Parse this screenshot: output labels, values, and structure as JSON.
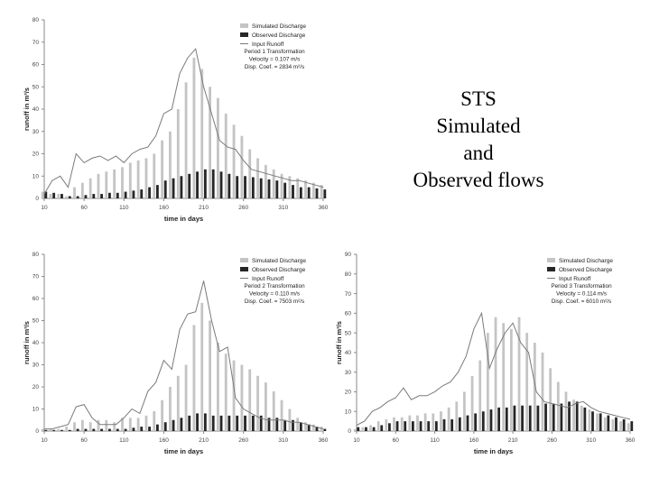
{
  "title": {
    "lines": [
      "STS",
      "Simulated",
      "and",
      "Observed flows"
    ]
  },
  "colors": {
    "simulated": "#c4c4c4",
    "observed": "#262626",
    "runoff": "#7a7a7a",
    "axis": "#8a8a8a"
  },
  "chart_data": [
    {
      "type": "bar",
      "xlabel": "time in days",
      "ylabel": "runoff in m³/s",
      "xlim": [
        10,
        360
      ],
      "xticks": [
        10,
        60,
        110,
        160,
        210,
        260,
        310,
        360
      ],
      "ylim": [
        0,
        80
      ],
      "yticks": [
        0,
        10,
        20,
        30,
        40,
        50,
        60,
        70,
        80
      ],
      "grid": false,
      "legend_position": "top-right",
      "legend": [
        "Simulated Discharge",
        "Observed Discharge",
        "Input Runoff"
      ],
      "annotation": [
        "Period 1 Transformation",
        "Velocity = 0.107 m/s",
        "Disp. Coef. = 2834 m²/s"
      ],
      "x": [
        10,
        20,
        30,
        40,
        50,
        60,
        70,
        80,
        90,
        100,
        110,
        120,
        130,
        140,
        150,
        160,
        170,
        180,
        190,
        200,
        210,
        220,
        230,
        240,
        250,
        260,
        270,
        280,
        290,
        300,
        310,
        320,
        330,
        340,
        350,
        360
      ],
      "series": [
        {
          "name": "Simulated Discharge",
          "kind": "bar",
          "values": [
            3,
            2,
            2,
            1,
            5,
            7,
            9,
            11,
            12,
            13,
            14,
            16,
            17,
            18,
            20,
            26,
            30,
            40,
            52,
            63,
            58,
            50,
            45,
            38,
            33,
            28,
            22,
            18,
            15,
            13,
            11,
            10,
            9,
            8,
            7,
            6
          ]
        },
        {
          "name": "Observed Discharge",
          "kind": "bar",
          "values": [
            3,
            2.5,
            2,
            1,
            1,
            1.5,
            2,
            2,
            2.5,
            2.5,
            3,
            3.5,
            4,
            5,
            6,
            8,
            9,
            10,
            11,
            12,
            13,
            13,
            12,
            11,
            10,
            10,
            9.5,
            9,
            8.5,
            8,
            7,
            6,
            5,
            5,
            4.5,
            4
          ]
        },
        {
          "name": "Input Runoff",
          "kind": "line",
          "values": [
            2,
            8,
            10,
            5,
            20,
            16,
            18,
            19,
            17,
            19,
            16,
            20,
            22,
            23,
            28,
            38,
            40,
            56,
            63,
            67,
            50,
            38,
            26,
            23,
            22,
            17,
            13,
            12,
            11,
            10,
            9,
            8,
            8,
            7,
            6,
            5
          ]
        }
      ]
    },
    {
      "type": "bar",
      "xlabel": "time in days",
      "ylabel": "runoff in m³/s",
      "xlim": [
        10,
        360
      ],
      "xticks": [
        10,
        60,
        110,
        160,
        210,
        260,
        310,
        360
      ],
      "ylim": [
        0,
        80
      ],
      "yticks": [
        0,
        10,
        20,
        30,
        40,
        50,
        60,
        70,
        80
      ],
      "grid": false,
      "legend_position": "top-right",
      "legend": [
        "Simulated Discharge",
        "Observed Discharge",
        "Input Runoff"
      ],
      "annotation": [
        "Period 2 Transformation",
        "Velocity = 0.110 m/s",
        "Disp. Coef. = 7503 m²/s"
      ],
      "x": [
        10,
        20,
        30,
        40,
        50,
        60,
        70,
        80,
        90,
        100,
        110,
        120,
        130,
        140,
        150,
        160,
        170,
        180,
        190,
        200,
        210,
        220,
        230,
        240,
        250,
        260,
        270,
        280,
        290,
        300,
        310,
        320,
        330,
        340,
        350,
        360
      ],
      "series": [
        {
          "name": "Simulated Discharge",
          "kind": "bar",
          "values": [
            1,
            1,
            1,
            2,
            4,
            5,
            4,
            5,
            5,
            4,
            6,
            6,
            6,
            7,
            9,
            14,
            20,
            25,
            30,
            48,
            58,
            50,
            40,
            35,
            32,
            30,
            28,
            25,
            22,
            18,
            14,
            10,
            6,
            4,
            3,
            2
          ]
        },
        {
          "name": "Observed Discharge",
          "kind": "bar",
          "values": [
            0.5,
            0.5,
            0.5,
            0.5,
            1,
            1,
            1,
            1,
            1,
            1,
            1,
            1.5,
            2,
            2,
            3,
            4,
            5,
            6,
            7,
            8,
            8,
            7,
            7,
            7,
            7,
            7,
            7,
            7,
            6,
            6,
            5,
            5,
            4,
            3,
            2,
            1
          ]
        },
        {
          "name": "Input Runoff",
          "kind": "line",
          "values": [
            1,
            1,
            2,
            3,
            11,
            12,
            6,
            3,
            3,
            3,
            6,
            10,
            8,
            18,
            22,
            32,
            28,
            46,
            53,
            54,
            68,
            50,
            36,
            38,
            15,
            10,
            8,
            6,
            5,
            5,
            5,
            4,
            4,
            3,
            2,
            1
          ]
        }
      ]
    },
    {
      "type": "bar",
      "xlabel": "time in days",
      "ylabel": "runoff in m³/s",
      "xlim": [
        10,
        360
      ],
      "xticks": [
        10,
        60,
        110,
        160,
        210,
        260,
        310,
        360
      ],
      "ylim": [
        0,
        90
      ],
      "yticks": [
        0,
        10,
        20,
        30,
        40,
        50,
        60,
        70,
        80,
        90
      ],
      "grid": false,
      "legend_position": "top-right",
      "legend": [
        "Simulated Discharge",
        "Observed Discharge",
        "Input Runoff"
      ],
      "annotation": [
        "Period 3 Transformation",
        "Velocity = 0.114 m/s",
        "Disp. Coef. = 6010 m²/s"
      ],
      "x": [
        10,
        20,
        30,
        40,
        50,
        60,
        70,
        80,
        90,
        100,
        110,
        120,
        130,
        140,
        150,
        160,
        170,
        180,
        190,
        200,
        210,
        220,
        230,
        240,
        250,
        260,
        270,
        280,
        290,
        300,
        310,
        320,
        330,
        340,
        350,
        360
      ],
      "series": [
        {
          "name": "Simulated Discharge",
          "kind": "bar",
          "values": [
            1,
            2,
            3,
            5,
            6,
            7,
            7,
            8,
            8,
            9,
            9,
            10,
            12,
            15,
            20,
            28,
            36,
            50,
            58,
            55,
            52,
            58,
            50,
            45,
            40,
            32,
            25,
            20,
            16,
            13,
            11,
            9,
            7,
            6,
            5,
            4
          ]
        },
        {
          "name": "Observed Discharge",
          "kind": "bar",
          "values": [
            2,
            2,
            2,
            3,
            4,
            5,
            5,
            5,
            5,
            5,
            5,
            6,
            6,
            7,
            8,
            9,
            10,
            11,
            12,
            12,
            13,
            13,
            13,
            13,
            14,
            14,
            14,
            15,
            15,
            12,
            10,
            9,
            8,
            7,
            6,
            5
          ]
        },
        {
          "name": "Input Runoff",
          "kind": "line",
          "values": [
            3,
            5,
            10,
            12,
            15,
            17,
            22,
            16,
            18,
            18,
            20,
            23,
            25,
            30,
            38,
            52,
            60,
            32,
            42,
            50,
            55,
            45,
            40,
            20,
            15,
            14,
            13,
            12,
            14,
            15,
            12,
            10,
            9,
            8,
            7,
            6
          ]
        }
      ]
    }
  ]
}
